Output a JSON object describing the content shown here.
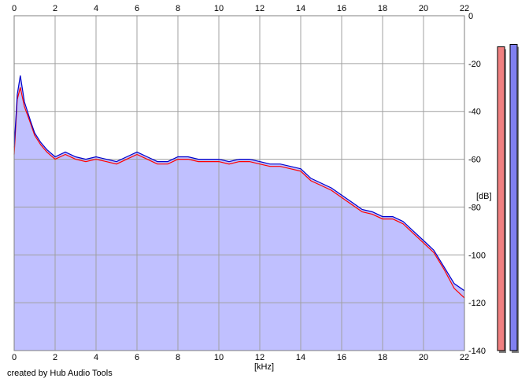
{
  "chart_data": {
    "type": "area",
    "title": "",
    "xlabel": "[kHz]",
    "ylabel": "[dB]",
    "xlim": [
      0,
      22
    ],
    "ylim": [
      -140,
      0
    ],
    "x_ticks": [
      "0",
      "2",
      "4",
      "6",
      "8",
      "10",
      "12",
      "14",
      "16",
      "18",
      "20",
      "22"
    ],
    "y_ticks": [
      "0",
      "-20",
      "-40",
      "-60",
      "-80",
      "-100",
      "-120",
      "-140"
    ],
    "grid": true,
    "x_axis_top": true,
    "series": [
      {
        "color": "#ff0000",
        "x": [
          0,
          0.15,
          0.3,
          0.5,
          0.8,
          1.0,
          1.3,
          1.6,
          2.0,
          2.5,
          3.0,
          3.5,
          4.0,
          4.5,
          5.0,
          5.5,
          6.0,
          6.5,
          7.0,
          7.5,
          8.0,
          8.5,
          9.0,
          9.5,
          10.0,
          10.5,
          11.0,
          11.5,
          12.0,
          12.5,
          13.0,
          13.5,
          14.0,
          14.5,
          15.0,
          15.5,
          16.0,
          16.5,
          17.0,
          17.5,
          18.0,
          18.5,
          19.0,
          19.5,
          20.0,
          20.5,
          21.0,
          21.5,
          22.0
        ],
        "values": [
          -58,
          -35,
          -30,
          -38,
          -45,
          -50,
          -54,
          -57,
          -60,
          -58,
          -60,
          -61,
          -60,
          -61,
          -62,
          -60,
          -58,
          -60,
          -62,
          -62,
          -60,
          -60,
          -61,
          -61,
          -61,
          -62,
          -61,
          -61,
          -62,
          -63,
          -63,
          -64,
          -65,
          -69,
          -71,
          -73,
          -76,
          -79,
          -82,
          -83,
          -85,
          -85,
          -87,
          -91,
          -95,
          -99,
          -106,
          -114,
          -118
        ]
      },
      {
        "color": "#0000cc",
        "x": [
          0,
          0.15,
          0.3,
          0.5,
          0.8,
          1.0,
          1.3,
          1.6,
          2.0,
          2.5,
          3.0,
          3.5,
          4.0,
          4.5,
          5.0,
          5.5,
          6.0,
          6.5,
          7.0,
          7.5,
          8.0,
          8.5,
          9.0,
          9.5,
          10.0,
          10.5,
          11.0,
          11.5,
          12.0,
          12.5,
          13.0,
          13.5,
          14.0,
          14.5,
          15.0,
          15.5,
          16.0,
          16.5,
          17.0,
          17.5,
          18.0,
          18.5,
          19.0,
          19.5,
          20.0,
          20.5,
          21.0,
          21.5,
          22.0
        ],
        "values": [
          -55,
          -33,
          -25,
          -36,
          -44,
          -49,
          -53,
          -56,
          -59,
          -57,
          -59,
          -60,
          -59,
          -60,
          -61,
          -59,
          -57,
          -59,
          -61,
          -61,
          -59,
          -59,
          -60,
          -60,
          -60,
          -61,
          -60,
          -60,
          -61,
          -62,
          -62,
          -63,
          -64,
          -68,
          -70,
          -72,
          -75,
          -78,
          -81,
          -82,
          -84,
          -84,
          -86,
          -90,
          -94,
          -98,
          -105,
          -112,
          -115
        ]
      }
    ],
    "fill_color": "#c0c0ff",
    "fill_series": 1,
    "level_meters": [
      {
        "color": "#f08080",
        "level_db": -13
      },
      {
        "color": "#8080f0",
        "level_db": -12
      }
    ]
  },
  "footer": {
    "credit": "created by Hub Audio Tools"
  }
}
